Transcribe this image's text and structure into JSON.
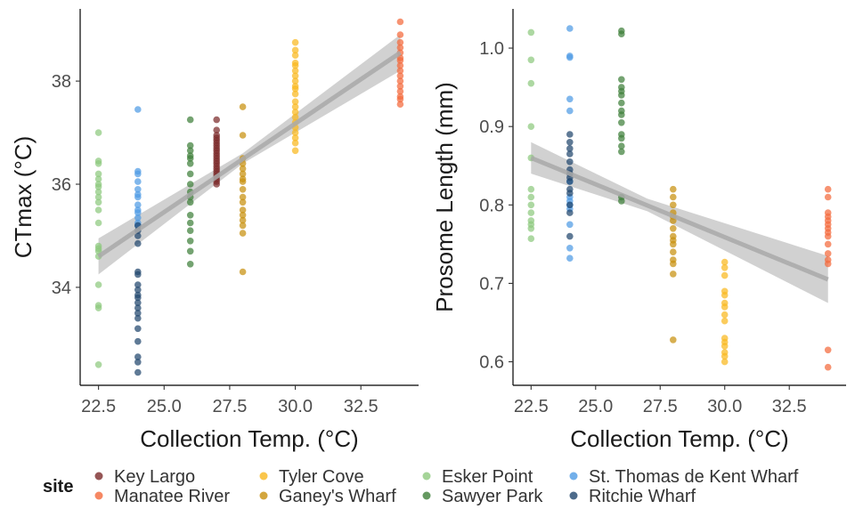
{
  "legend": {
    "title": "site",
    "entries": [
      {
        "name": "Key Largo",
        "color": "#7b2a2a"
      },
      {
        "name": "Manatee River",
        "color": "#f46a3c"
      },
      {
        "name": "Tyler Cove",
        "color": "#f9b81f"
      },
      {
        "name": "Ganey's Wharf",
        "color": "#c8900e"
      },
      {
        "name": "Esker Point",
        "color": "#8ec97e"
      },
      {
        "name": "Sawyer Park",
        "color": "#3f7f3a"
      },
      {
        "name": "St. Thomas de Kent Wharf",
        "color": "#4f9be5"
      },
      {
        "name": "Ritchie Wharf",
        "color": "#21466e"
      }
    ]
  },
  "chart_data": [
    {
      "type": "scatter",
      "xlabel": "Collection Temp. (°C)",
      "ylabel": "CTmax (°C)",
      "xlim": [
        21.8,
        34.7
      ],
      "ylim": [
        32.1,
        39.4
      ],
      "xticks": [
        22.5,
        25.0,
        27.5,
        30.0,
        32.5
      ],
      "xtick_labels": [
        "22.5",
        "25.0",
        "27.5",
        "30.0",
        "32.5"
      ],
      "yticks": [
        34,
        36,
        38
      ],
      "ytick_labels": [
        "34",
        "36",
        "38"
      ],
      "regression": {
        "x": [
          22.5,
          34
        ],
        "y": [
          34.6,
          38.55
        ],
        "ci_lower": [
          34.25,
          38.2
        ],
        "ci_upper": [
          34.95,
          38.9
        ],
        "ci_mid": [
          28,
          36.5
        ],
        "ci_mid_half": 0.1
      },
      "series": [
        {
          "name": "Esker Point",
          "x": 22.5,
          "values": [
            37.0,
            36.45,
            36.4,
            36.2,
            36.1,
            36.0,
            35.95,
            35.85,
            35.75,
            35.65,
            35.5,
            35.25,
            34.8,
            34.75,
            34.7,
            34.6,
            34.05,
            33.65,
            33.6,
            32.5
          ]
        },
        {
          "name": "St. Thomas de Kent Wharf",
          "x": 24,
          "values": [
            37.45,
            36.25,
            36.2,
            36.05,
            35.9,
            35.8,
            35.75,
            35.6,
            35.5,
            35.45,
            35.35,
            35.25,
            35.2
          ]
        },
        {
          "name": "Ritchie Wharf",
          "x": 24,
          "values": [
            35.2,
            35.1,
            35.0,
            34.85,
            34.3,
            34.25,
            34.05,
            33.95,
            33.85,
            33.8,
            33.7,
            33.6,
            33.5,
            33.4,
            33.2,
            32.95,
            32.65,
            32.55,
            32.35
          ]
        },
        {
          "name": "Sawyer Park",
          "x": 26,
          "values": [
            37.25,
            36.75,
            36.65,
            36.55,
            36.5,
            36.4,
            36.2,
            36.0,
            35.85,
            35.75,
            35.65,
            35.4,
            35.25,
            35.1,
            34.9,
            34.7,
            34.45
          ]
        },
        {
          "name": "Key Largo",
          "x": 27,
          "values": [
            37.25,
            37.05,
            36.95,
            36.9,
            36.85,
            36.8,
            36.75,
            36.7,
            36.65,
            36.6,
            36.55,
            36.5,
            36.45,
            36.4,
            36.35,
            36.3,
            36.25,
            36.2,
            36.15,
            36.1,
            36.05,
            36.0
          ]
        },
        {
          "name": "Ganey's Wharf",
          "x": 28,
          "values": [
            37.5,
            36.95,
            36.5,
            36.4,
            36.3,
            36.2,
            36.1,
            36.05,
            35.9,
            35.75,
            35.65,
            35.5,
            35.4,
            35.3,
            35.2,
            35.05,
            34.3
          ]
        },
        {
          "name": "Tyler Cove",
          "x": 30,
          "values": [
            38.75,
            38.6,
            38.5,
            38.35,
            38.3,
            38.2,
            38.1,
            38.0,
            37.9,
            37.85,
            37.75,
            37.6,
            37.5,
            37.4,
            37.3,
            37.2,
            37.1,
            37.0,
            36.9,
            36.8,
            36.65
          ]
        },
        {
          "name": "Manatee River",
          "x": 34,
          "values": [
            39.15,
            38.9,
            38.75,
            38.65,
            38.55,
            38.45,
            38.4,
            38.3,
            38.2,
            38.1,
            38.0,
            37.9,
            37.8,
            37.7,
            37.65,
            37.55
          ]
        }
      ]
    },
    {
      "type": "scatter",
      "xlabel": "Collection Temp. (°C)",
      "ylabel": "Prosome Length (mm)",
      "xlim": [
        21.8,
        34.7
      ],
      "ylim": [
        0.57,
        1.05
      ],
      "xticks": [
        22.5,
        25.0,
        27.5,
        30.0,
        32.5
      ],
      "xtick_labels": [
        "22.5",
        "25.0",
        "27.5",
        "30.0",
        "32.5"
      ],
      "yticks": [
        0.6,
        0.7,
        0.8,
        0.9,
        1.0
      ],
      "ytick_labels": [
        "0.6",
        "0.7",
        "0.8",
        "0.9",
        "1.0"
      ],
      "regression": {
        "x": [
          22.5,
          34
        ],
        "y": [
          0.86,
          0.705
        ],
        "ci_lower": [
          0.84,
          0.675
        ],
        "ci_upper": [
          0.88,
          0.735
        ],
        "ci_mid": [
          27,
          0.8
        ],
        "ci_mid_half": 0.008
      },
      "series": [
        {
          "name": "Esker Point",
          "x": 22.5,
          "values": [
            1.02,
            0.985,
            0.955,
            0.9,
            0.86,
            0.82,
            0.81,
            0.8,
            0.79,
            0.78,
            0.775,
            0.77,
            0.757
          ]
        },
        {
          "name": "St. Thomas de Kent Wharf",
          "x": 24,
          "values": [
            1.025,
            0.99,
            0.988,
            0.935,
            0.92,
            0.83,
            0.81,
            0.805,
            0.8,
            0.795,
            0.775,
            0.745,
            0.732
          ]
        },
        {
          "name": "Ritchie Wharf",
          "x": 24,
          "values": [
            0.89,
            0.88,
            0.872,
            0.865,
            0.855,
            0.845,
            0.84,
            0.835,
            0.83,
            0.82,
            0.815,
            0.8,
            0.79,
            0.76
          ]
        },
        {
          "name": "Sawyer Park",
          "x": 26,
          "values": [
            1.022,
            1.018,
            0.96,
            0.95,
            0.945,
            0.94,
            0.93,
            0.92,
            0.915,
            0.905,
            0.89,
            0.885,
            0.875,
            0.868,
            0.81,
            0.805
          ]
        },
        {
          "name": "Ganey's Wharf",
          "x": 28,
          "values": [
            0.82,
            0.81,
            0.8,
            0.79,
            0.785,
            0.78,
            0.77,
            0.76,
            0.755,
            0.75,
            0.74,
            0.73,
            0.725,
            0.712,
            0.628
          ]
        },
        {
          "name": "Tyler Cove",
          "x": 30,
          "values": [
            0.727,
            0.72,
            0.71,
            0.69,
            0.685,
            0.675,
            0.67,
            0.66,
            0.652,
            0.63,
            0.625,
            0.62,
            0.612,
            0.607,
            0.6
          ]
        },
        {
          "name": "Manatee River",
          "x": 34,
          "values": [
            0.82,
            0.81,
            0.79,
            0.785,
            0.78,
            0.775,
            0.77,
            0.765,
            0.76,
            0.75,
            0.738,
            0.73,
            0.725,
            0.615,
            0.593
          ]
        }
      ]
    }
  ]
}
